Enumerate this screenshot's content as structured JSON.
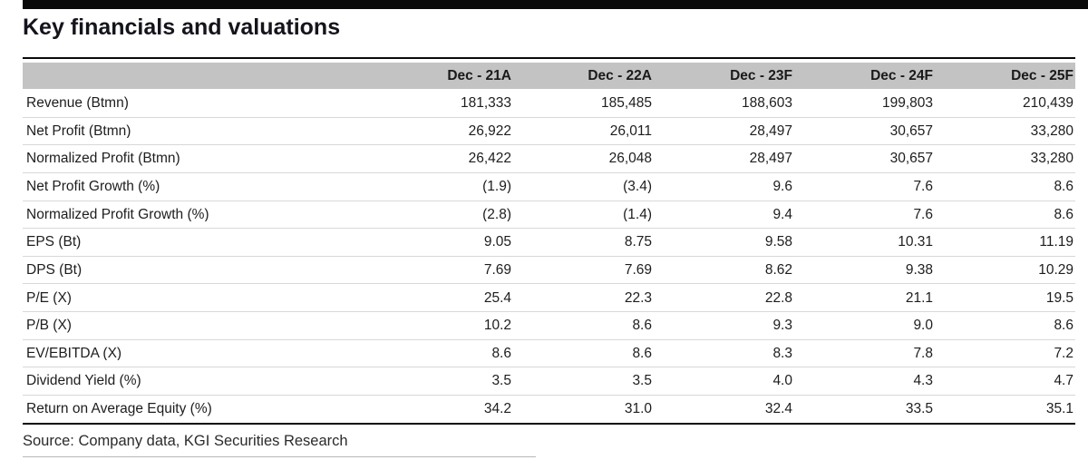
{
  "page": {
    "title": "Key financials and valuations",
    "source_note": "Source: Company data, KGI Securities Research"
  },
  "table": {
    "columns": [
      "Dec - 21A",
      "Dec - 22A",
      "Dec - 23F",
      "Dec - 24F",
      "Dec - 25F"
    ],
    "rows": [
      {
        "label": "Revenue (Btmn)",
        "values": [
          "181,333",
          "185,485",
          "188,603",
          "199,803",
          "210,439"
        ]
      },
      {
        "label": "Net Profit (Btmn)",
        "values": [
          "26,922",
          "26,011",
          "28,497",
          "30,657",
          "33,280"
        ]
      },
      {
        "label": "Normalized Profit (Btmn)",
        "values": [
          "26,422",
          "26,048",
          "28,497",
          "30,657",
          "33,280"
        ]
      },
      {
        "label": "Net Profit Growth (%)",
        "values": [
          "(1.9)",
          "(3.4)",
          "9.6",
          "7.6",
          "8.6"
        ]
      },
      {
        "label": "Normalized Profit Growth (%)",
        "values": [
          "(2.8)",
          "(1.4)",
          "9.4",
          "7.6",
          "8.6"
        ]
      },
      {
        "label": "EPS (Bt)",
        "values": [
          "9.05",
          "8.75",
          "9.58",
          "10.31",
          "11.19"
        ]
      },
      {
        "label": "DPS (Bt)",
        "values": [
          "7.69",
          "7.69",
          "8.62",
          "9.38",
          "10.29"
        ]
      },
      {
        "label": "P/E (X)",
        "values": [
          "25.4",
          "22.3",
          "22.8",
          "21.1",
          "19.5"
        ]
      },
      {
        "label": "P/B (X)",
        "values": [
          "10.2",
          "8.6",
          "9.3",
          "9.0",
          "8.6"
        ]
      },
      {
        "label": "EV/EBITDA (X)",
        "values": [
          "8.6",
          "8.6",
          "8.3",
          "7.8",
          "7.2"
        ]
      },
      {
        "label": "Dividend Yield (%)",
        "values": [
          "3.5",
          "3.5",
          "4.0",
          "4.3",
          "4.7"
        ]
      },
      {
        "label": "Return on Average Equity (%)",
        "values": [
          "34.2",
          "31.0",
          "32.4",
          "33.5",
          "35.1"
        ]
      }
    ]
  },
  "colors": {
    "header_bg": "#c3c3c3",
    "rule_dark": "#0a0a0a",
    "row_divider": "#d8d8d8",
    "text": "#1d1d1d"
  }
}
